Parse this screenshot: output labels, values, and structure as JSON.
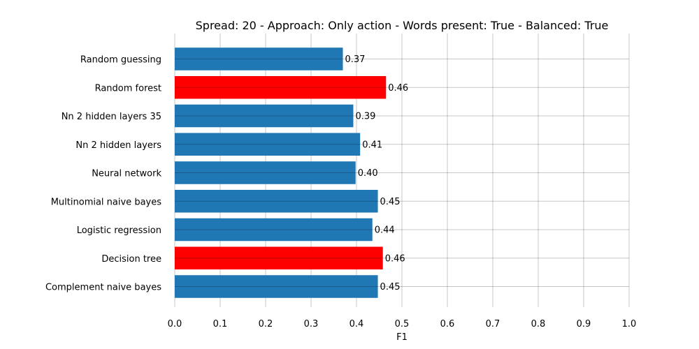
{
  "chart_data": {
    "type": "bar",
    "orientation": "horizontal",
    "title": "Spread: 20 - Approach: Only action - Words present: True - Balanced: True",
    "xlabel": "F1",
    "ylabel": "",
    "xlim": [
      0,
      1
    ],
    "x_ticks": [
      "0.0",
      "0.1",
      "0.2",
      "0.3",
      "0.4",
      "0.5",
      "0.6",
      "0.7",
      "0.8",
      "0.9",
      "1.0"
    ],
    "grid": true,
    "categories": [
      "Random guessing",
      "Random forest",
      "Nn 2 hidden layers 35",
      "Nn 2 hidden layers",
      "Neural network",
      "Multinomial naive bayes",
      "Logistic regression",
      "Decision tree",
      "Complement naive bayes"
    ],
    "values": [
      0.37,
      0.465,
      0.393,
      0.408,
      0.398,
      0.447,
      0.435,
      0.458,
      0.447
    ],
    "value_labels": [
      "0.37",
      "0.46",
      "0.39",
      "0.41",
      "0.40",
      "0.45",
      "0.44",
      "0.46",
      "0.45"
    ],
    "colors": [
      "#1f77b4",
      "#ff0000",
      "#1f77b4",
      "#1f77b4",
      "#1f77b4",
      "#1f77b4",
      "#1f77b4",
      "#ff0000",
      "#1f77b4"
    ]
  }
}
